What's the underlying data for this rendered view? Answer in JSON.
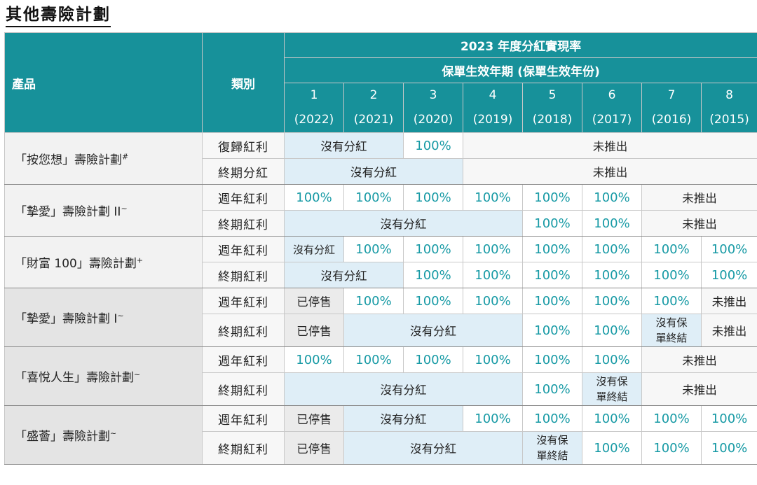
{
  "page_title": "其他壽險計劃",
  "header": {
    "product": "產品",
    "category": "類別",
    "rate_title": "2023 年度分紅實現率",
    "policy_year_title": "保單生效年期 (保單生效年份)",
    "year_numbers": [
      "1",
      "2",
      "3",
      "4",
      "5",
      "6",
      "7",
      "8"
    ],
    "year_labels": [
      "(2022)",
      "(2021)",
      "(2020)",
      "(2019)",
      "(2018)",
      "(2017)",
      "(2016)",
      "(2015)"
    ]
  },
  "labels": {
    "reversionary": "復歸紅利",
    "terminal_period": "終期分紅",
    "annual": "週年紅利",
    "terminal": "終期紅利",
    "no_dividend": "沒有分紅",
    "not_launched": "未推出",
    "discontinued": "已停售",
    "pct": "100%",
    "no_terminal_a": "沒有保",
    "no_terminal_b": "單終結"
  },
  "products": [
    {
      "name": "「按您想」壽險計劃",
      "mark": "#"
    },
    {
      "name": "「摯愛」壽險計劃 II",
      "mark": "~"
    },
    {
      "name": "「財富 100」壽險計劃",
      "mark": "+"
    },
    {
      "name": "「摯愛」壽險計劃 I",
      "mark": "~"
    },
    {
      "name": "「喜悅人生」壽險計劃",
      "mark": "~"
    },
    {
      "name": "「盛薈」壽險計劃",
      "mark": "~"
    }
  ],
  "colors": {
    "header_bg": "#17919a",
    "percent_text": "#179aa5",
    "light_blue_cell": "#dfeef7",
    "grey_cell": "#ebebeb"
  }
}
